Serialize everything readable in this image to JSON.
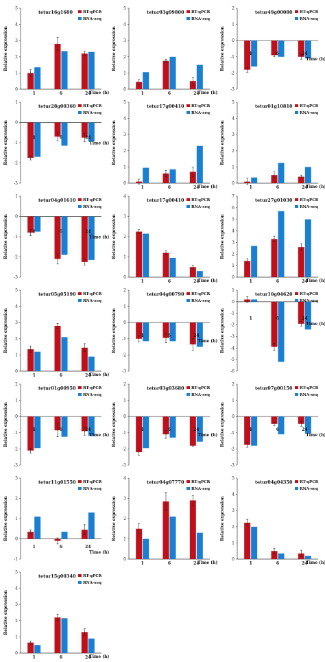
{
  "colors": {
    "rt_qpcr": "#c0111a",
    "rna_seq": "#1a7fd0",
    "axis": "#333333",
    "error": "#222222"
  },
  "legend_labels": [
    "RT-qPCR",
    "RNA-seq"
  ],
  "xlabel": "Time (h)",
  "ylabel": "Relative expression",
  "categories": [
    "1",
    "6",
    "24"
  ],
  "chart_data": [
    {
      "type": "bar",
      "title": "tetur16g1680",
      "ylim": [
        0,
        5
      ],
      "categories": [
        "1",
        "6",
        "24"
      ],
      "series": [
        {
          "name": "RT-qPCR",
          "values": [
            1.0,
            2.8,
            2.2
          ],
          "errors": [
            0.2,
            0.4,
            0.15
          ]
        },
        {
          "name": "RNA-seq",
          "values": [
            1.35,
            2.35,
            2.3
          ]
        }
      ]
    },
    {
      "type": "bar",
      "title": "tetur03g09800",
      "ylim": [
        0,
        5
      ],
      "categories": [
        "1",
        "6",
        "24"
      ],
      "series": [
        {
          "name": "RT-qPCR",
          "values": [
            0.45,
            1.75,
            0.5
          ],
          "errors": [
            0.15,
            0.1,
            0.25
          ]
        },
        {
          "name": "RNA-seq",
          "values": [
            1.05,
            2.0,
            1.5
          ]
        }
      ]
    },
    {
      "type": "bar",
      "title": "tetur49g00080",
      "ylim": [
        -3,
        2
      ],
      "categories": [
        "1",
        "6",
        "24"
      ],
      "series": [
        {
          "name": "RT-qPCR",
          "values": [
            -1.8,
            -0.9,
            -1.0
          ],
          "errors": [
            0.15,
            0.1,
            0.15
          ]
        },
        {
          "name": "RNA-seq",
          "values": [
            -1.6,
            -1.0,
            -1.1
          ]
        }
      ]
    },
    {
      "type": "bar",
      "title": "tetur28g00360",
      "ylim": [
        -3,
        1
      ],
      "categories": [
        "1",
        "6",
        "24"
      ],
      "series": [
        {
          "name": "RT-qPCR",
          "values": [
            -1.75,
            -0.7,
            -0.75
          ],
          "errors": [
            0.1,
            0.2,
            0.2
          ]
        },
        {
          "name": "RNA-seq",
          "values": [
            -1.7,
            -1.15,
            -0.95
          ]
        }
      ]
    },
    {
      "type": "bar",
      "title": "tetur17g00410",
      "ylim": [
        0,
        5
      ],
      "categories": [
        "1",
        "6",
        "24"
      ],
      "series": [
        {
          "name": "RT-qPCR",
          "values": [
            0.1,
            0.6,
            0.7
          ],
          "errors": [
            0.15,
            0.2,
            0.3
          ]
        },
        {
          "name": "RNA-seq",
          "values": [
            0.95,
            0.85,
            2.3
          ]
        }
      ]
    },
    {
      "type": "bar",
      "title": "tetur01g10810",
      "ylim": [
        0,
        5
      ],
      "categories": [
        "1",
        "6",
        "24"
      ],
      "series": [
        {
          "name": "RT-qPCR",
          "values": [
            0.1,
            0.5,
            0.4
          ],
          "errors": [
            0.2,
            0.2,
            0.1
          ]
        },
        {
          "name": "RNA-seq",
          "values": [
            0.35,
            1.25,
            1.0
          ]
        }
      ]
    },
    {
      "type": "bar",
      "title": "tetur04g01610",
      "ylim": [
        -3,
        1
      ],
      "categories": [
        "1",
        "6",
        "24"
      ],
      "series": [
        {
          "name": "RT-qPCR",
          "values": [
            -0.8,
            -2.1,
            -2.25
          ],
          "errors": [
            0.15,
            0.25,
            0.15
          ]
        },
        {
          "name": "RNA-seq",
          "values": [
            -0.75,
            -1.9,
            -2.15
          ]
        }
      ]
    },
    {
      "type": "bar",
      "title": "tetur17g00410",
      "ylim": [
        0,
        4
      ],
      "categories": [
        "1",
        "6",
        "24"
      ],
      "series": [
        {
          "name": "RT-qPCR",
          "values": [
            2.25,
            1.2,
            0.5
          ],
          "errors": [
            0.1,
            0.1,
            0.1
          ]
        },
        {
          "name": "RNA-seq",
          "values": [
            2.15,
            0.95,
            0.3
          ]
        }
      ]
    },
    {
      "type": "bar",
      "title": "tetur27g01030",
      "ylim": [
        0,
        7
      ],
      "categories": [
        "1",
        "6",
        "24"
      ],
      "series": [
        {
          "name": "RT-qPCR",
          "values": [
            1.4,
            3.3,
            2.6
          ],
          "errors": [
            0.2,
            0.25,
            0.3
          ]
        },
        {
          "name": "RNA-seq",
          "values": [
            2.7,
            5.7,
            5.0
          ]
        }
      ]
    },
    {
      "type": "bar",
      "title": "tetur05g05190",
      "ylim": [
        0,
        5
      ],
      "categories": [
        "1",
        "6",
        "24"
      ],
      "series": [
        {
          "name": "RT-qPCR",
          "values": [
            1.35,
            2.8,
            1.45
          ],
          "errors": [
            0.2,
            0.15,
            0.25
          ]
        },
        {
          "name": "RNA-seq",
          "values": [
            1.2,
            2.1,
            0.9
          ]
        }
      ]
    },
    {
      "type": "bar",
      "title": "tetur04g00790",
      "ylim": [
        -3,
        2
      ],
      "categories": [
        "1",
        "6",
        "24"
      ],
      "series": [
        {
          "name": "RT-qPCR",
          "values": [
            -1.0,
            -0.95,
            -1.35
          ],
          "errors": [
            0.2,
            0.3,
            0.35
          ]
        },
        {
          "name": "RNA-seq",
          "values": [
            -1.15,
            -1.15,
            -1.5
          ]
        }
      ]
    },
    {
      "type": "bar",
      "title": "tetur10g04620",
      "ylim": [
        -6,
        1
      ],
      "categories": [
        "1",
        "6",
        "24"
      ],
      "series": [
        {
          "name": "RT-qPCR",
          "values": [
            0.2,
            -3.9,
            -1.9
          ],
          "errors": [
            0.25,
            0.3,
            0.2
          ]
        },
        {
          "name": "RNA-seq",
          "values": [
            0.2,
            -5.2,
            -2.4
          ]
        }
      ]
    },
    {
      "type": "bar",
      "title": "tetur01g00950",
      "ylim": [
        -3,
        2
      ],
      "categories": [
        "1",
        "6",
        "24"
      ],
      "series": [
        {
          "name": "RT-qPCR",
          "values": [
            -2.1,
            -0.85,
            -0.9
          ],
          "errors": [
            0.15,
            0.4,
            0.25
          ]
        },
        {
          "name": "RNA-seq",
          "values": [
            -1.95,
            -1.25,
            -1.2
          ]
        }
      ]
    },
    {
      "type": "bar",
      "title": "tetur03g03680",
      "ylim": [
        -3,
        2
      ],
      "categories": [
        "1",
        "6",
        "24"
      ],
      "series": [
        {
          "name": "RT-qPCR",
          "values": [
            -2.2,
            -1.1,
            -1.8
          ],
          "errors": [
            0.2,
            0.25,
            0.05
          ]
        },
        {
          "name": "RNA-seq",
          "values": [
            -1.95,
            -1.3,
            -1.55
          ]
        }
      ]
    },
    {
      "type": "bar",
      "title": "tetur07g00150",
      "ylim": [
        -3,
        2
      ],
      "categories": [
        "1",
        "6",
        "24"
      ],
      "series": [
        {
          "name": "RT-qPCR",
          "values": [
            -1.75,
            -0.45,
            -0.45
          ],
          "errors": [
            0.15,
            0.1,
            0.15
          ]
        },
        {
          "name": "RNA-seq",
          "values": [
            -1.8,
            -1.1,
            -1.05
          ]
        }
      ]
    },
    {
      "type": "bar",
      "title": "tetur11g01550",
      "ylim": [
        -1,
        3
      ],
      "categories": [
        "1",
        "6",
        "24"
      ],
      "series": [
        {
          "name": "RT-qPCR",
          "values": [
            0.35,
            -0.1,
            0.45
          ],
          "errors": [
            0.1,
            0.15,
            0.25
          ]
        },
        {
          "name": "RNA-seq",
          "values": [
            1.1,
            0.35,
            1.3
          ]
        }
      ]
    },
    {
      "type": "bar",
      "title": "tetur04g07770",
      "ylim": [
        0,
        4
      ],
      "categories": [
        "1",
        "6",
        "24"
      ],
      "series": [
        {
          "name": "RT-qPCR",
          "values": [
            1.5,
            2.85,
            2.9
          ],
          "errors": [
            0.25,
            0.45,
            0.25
          ]
        },
        {
          "name": "RNA-seq",
          "values": [
            1.0,
            2.1,
            1.3
          ]
        }
      ]
    },
    {
      "type": "bar",
      "title": "tetur04g04350",
      "ylim": [
        0,
        5
      ],
      "categories": [
        "1",
        "6",
        "24"
      ],
      "series": [
        {
          "name": "RT-qPCR",
          "values": [
            2.25,
            0.5,
            0.35
          ],
          "errors": [
            0.2,
            0.15,
            0.2
          ]
        },
        {
          "name": "RNA-seq",
          "values": [
            2.0,
            0.35,
            0.2
          ]
        }
      ]
    },
    {
      "type": "bar",
      "title": "tetur15g00340",
      "ylim": [
        0,
        5
      ],
      "categories": [
        "1",
        "6",
        "24"
      ],
      "series": [
        {
          "name": "RT-qPCR",
          "values": [
            0.65,
            2.2,
            1.3
          ],
          "errors": [
            0.1,
            0.2,
            0.2
          ]
        },
        {
          "name": "RNA-seq",
          "values": [
            0.5,
            2.15,
            0.9
          ]
        }
      ]
    }
  ]
}
